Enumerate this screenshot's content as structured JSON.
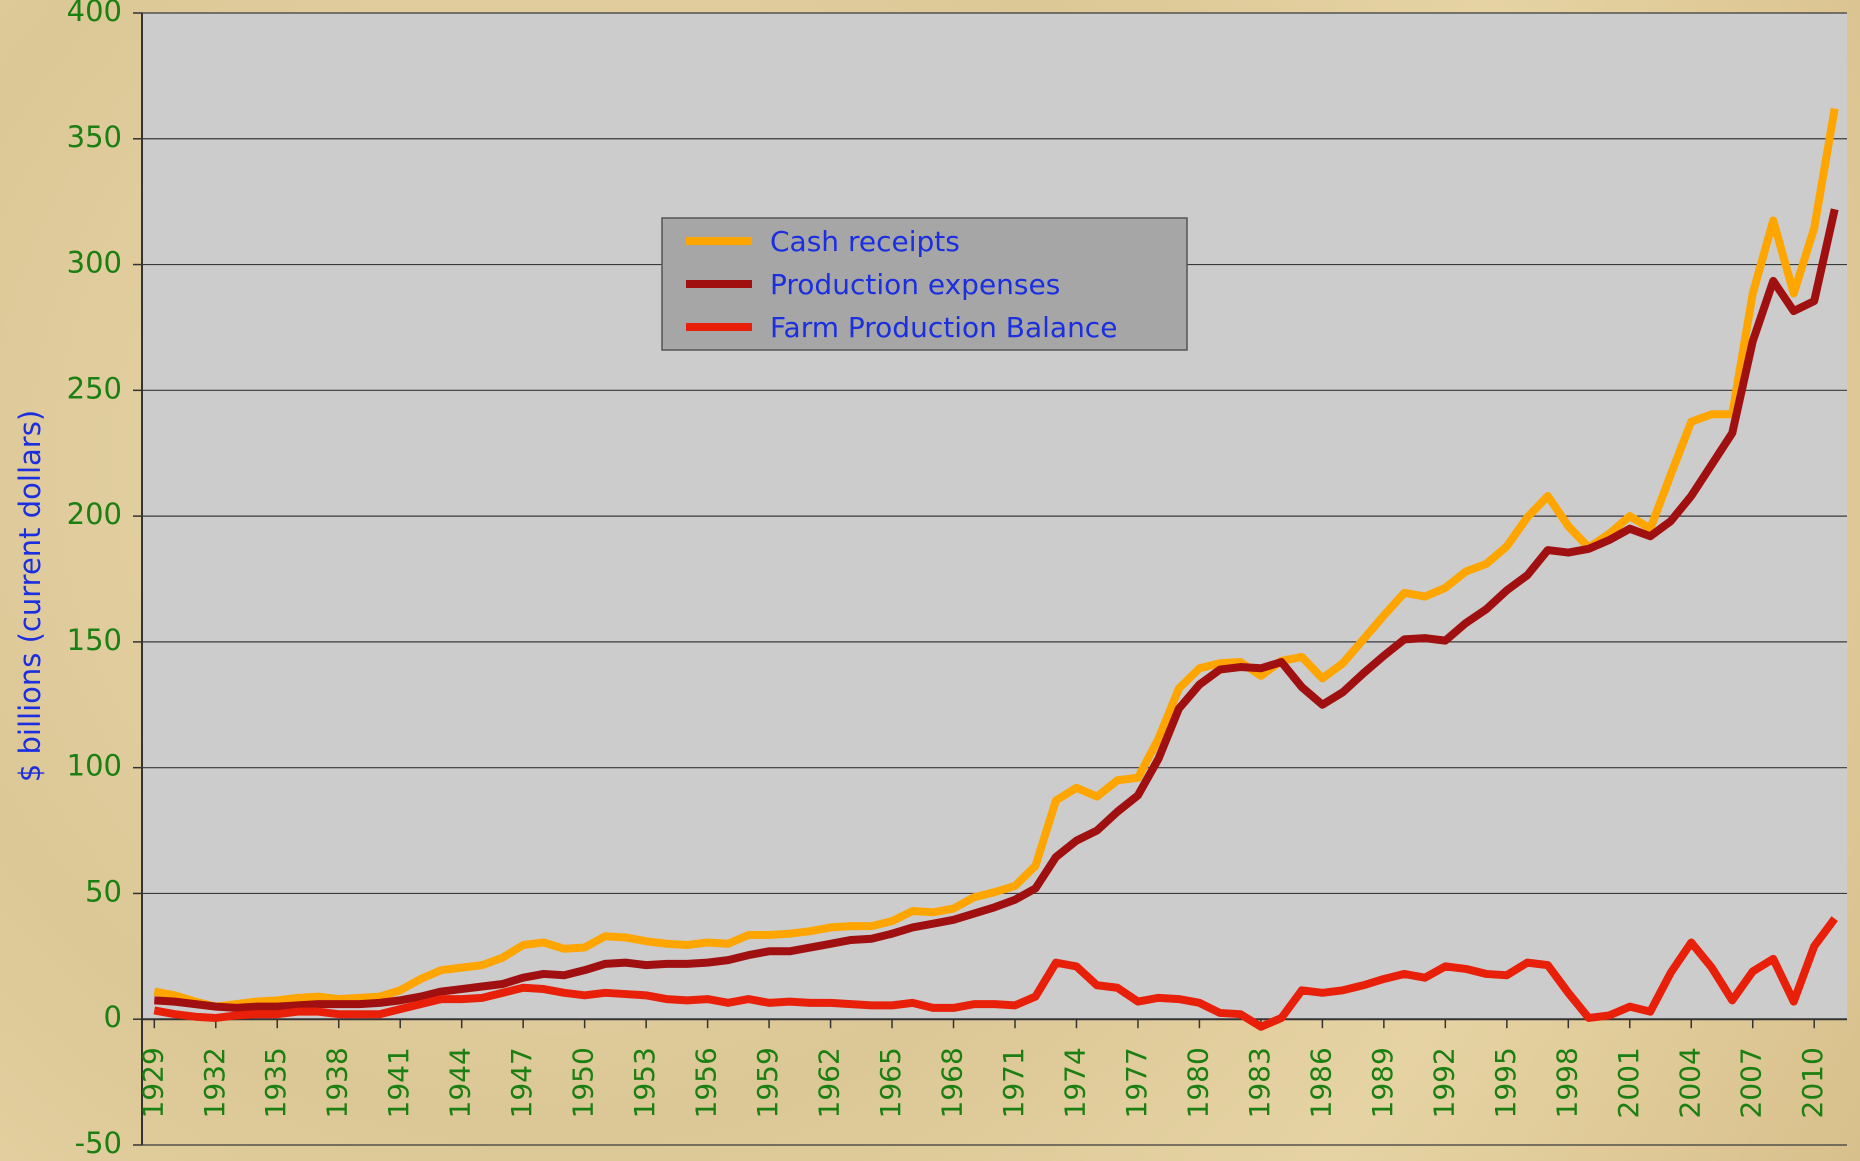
{
  "chart_data": {
    "type": "line",
    "ylabel": "$ billions (current dollars)",
    "x": [
      1929,
      1930,
      1931,
      1932,
      1933,
      1934,
      1935,
      1936,
      1937,
      1938,
      1939,
      1940,
      1941,
      1942,
      1943,
      1944,
      1945,
      1946,
      1947,
      1948,
      1949,
      1950,
      1951,
      1952,
      1953,
      1954,
      1955,
      1956,
      1957,
      1958,
      1959,
      1960,
      1961,
      1962,
      1963,
      1964,
      1965,
      1966,
      1967,
      1968,
      1969,
      1970,
      1971,
      1972,
      1973,
      1974,
      1975,
      1976,
      1977,
      1978,
      1979,
      1980,
      1981,
      1982,
      1983,
      1984,
      1985,
      1986,
      1987,
      1988,
      1989,
      1990,
      1991,
      1992,
      1993,
      1994,
      1995,
      1996,
      1997,
      1998,
      1999,
      2000,
      2001,
      2002,
      2003,
      2004,
      2005,
      2006,
      2007,
      2008,
      2009,
      2010,
      2011
    ],
    "series": [
      {
        "name": "Cash receipts",
        "color": "#ffa500",
        "values": [
          11,
          9.5,
          7,
          5,
          6,
          7,
          7.5,
          8.5,
          9,
          8,
          8.5,
          9,
          11.5,
          16,
          19.5,
          20.5,
          21.5,
          24.5,
          29.5,
          30.5,
          28,
          28.5,
          33,
          32.5,
          31,
          30,
          29.5,
          30.5,
          30,
          33.5,
          33.5,
          34,
          35,
          36.5,
          37,
          37,
          39,
          43,
          42.5,
          44,
          48.5,
          50.5,
          53,
          61,
          87,
          92,
          88.5,
          95,
          96,
          111.5,
          131.5,
          139.5,
          141.5,
          142,
          136.5,
          142.5,
          144,
          135.5,
          141.5,
          151,
          160.5,
          169.5,
          168,
          171.5,
          178,
          181,
          188,
          199.5,
          208,
          196,
          187.5,
          193,
          200,
          195,
          216.5,
          237.5,
          240.5,
          240.5,
          288.5,
          317.5,
          288.5,
          314.5,
          362
        ]
      },
      {
        "name": "Production expenses",
        "color": "#a01010",
        "values": [
          7.5,
          7,
          6,
          5,
          4.5,
          5,
          5,
          5.5,
          6,
          6,
          6,
          6.5,
          7.5,
          9,
          11,
          12,
          13,
          14,
          16.5,
          18,
          17.5,
          19.5,
          22,
          22.5,
          21.5,
          22,
          22,
          22.5,
          23.5,
          25.5,
          27,
          27,
          28.5,
          30,
          31.5,
          32,
          34,
          36.5,
          38,
          39.5,
          42,
          44.5,
          47.5,
          52,
          64.5,
          71,
          75,
          82.5,
          89,
          103.5,
          123.5,
          133,
          139,
          140,
          139.5,
          142,
          132,
          125,
          130,
          137.5,
          144.5,
          151,
          151.5,
          150.5,
          157.5,
          163,
          170.5,
          176.5,
          186.5,
          185.5,
          187,
          190.5,
          195,
          192,
          198,
          208,
          220.5,
          233,
          269.5,
          293.5,
          281.5,
          285.5,
          322
        ]
      },
      {
        "name": "Farm Production Balance",
        "color": "#e8200a",
        "values": [
          3.5,
          2,
          1,
          0.5,
          1.5,
          2,
          2,
          3,
          3,
          2,
          2,
          2,
          4,
          6,
          8,
          8,
          8.5,
          10.5,
          12.5,
          12,
          10.5,
          9.5,
          10.5,
          10,
          9.5,
          8,
          7.5,
          8,
          6.5,
          8,
          6.5,
          7,
          6.5,
          6.5,
          6,
          5.5,
          5.5,
          6.5,
          4.5,
          4.5,
          6,
          6,
          5.5,
          9,
          22.5,
          21,
          13.5,
          12.5,
          7,
          8.5,
          8,
          6.5,
          2.5,
          2,
          -3,
          0.5,
          11.5,
          10.5,
          11.5,
          13.5,
          16,
          18,
          16.5,
          21,
          20,
          18,
          17.5,
          22.5,
          21.5,
          10.5,
          0.5,
          1.5,
          5,
          3,
          18.5,
          30.5,
          20.5,
          7.5,
          19,
          24,
          7,
          29,
          40
        ]
      }
    ],
    "xlim": [
      1928.4,
      2011.6
    ],
    "xticks": [
      1929,
      1932,
      1935,
      1938,
      1941,
      1944,
      1947,
      1950,
      1953,
      1956,
      1959,
      1962,
      1965,
      1968,
      1971,
      1974,
      1977,
      1980,
      1983,
      1986,
      1989,
      1992,
      1995,
      1998,
      2001,
      2004,
      2007,
      2010
    ],
    "ylim": [
      -50,
      400
    ],
    "yticks": [
      -50,
      0,
      50,
      100,
      150,
      200,
      250,
      300,
      350,
      400
    ],
    "grid": true,
    "legend": "upper center"
  }
}
